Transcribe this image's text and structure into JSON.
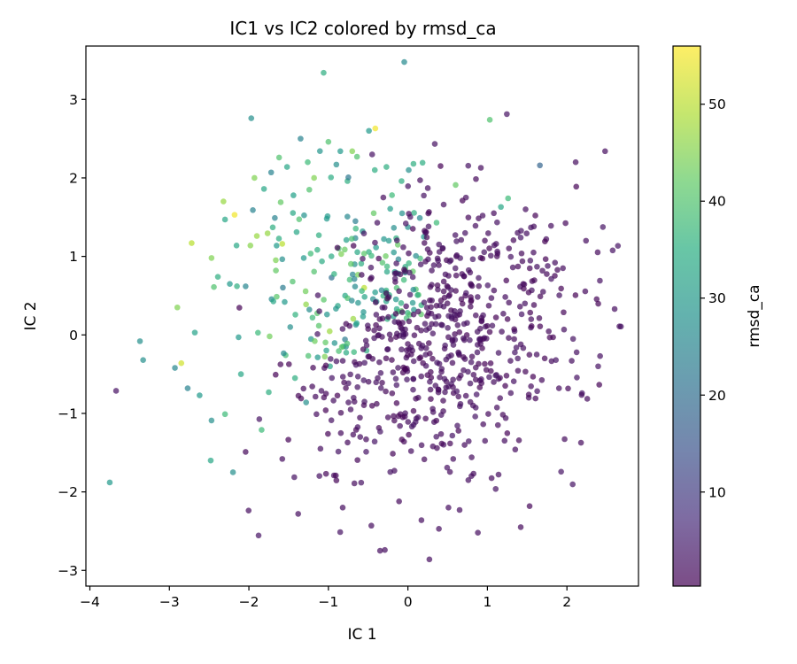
{
  "chart_data": {
    "type": "scatter",
    "title": "IC1 vs IC2 colored by rmsd_ca",
    "xlabel": "IC 1",
    "ylabel": "IC 2",
    "xlim": [
      -4.05,
      2.9
    ],
    "ylim": [
      -3.2,
      3.68
    ],
    "xticks": [
      -4,
      -3,
      -2,
      -1,
      0,
      1,
      2
    ],
    "yticks": [
      -3,
      -2,
      -1,
      0,
      1,
      2,
      3
    ],
    "xtick_labels": [
      "−4",
      "−3",
      "−2",
      "−1",
      "0",
      "1",
      "2"
    ],
    "ytick_labels": [
      "−3",
      "−2",
      "−1",
      "0",
      "1",
      "2",
      "3"
    ],
    "colormap": "viridis",
    "alpha": 0.7,
    "colorbar": {
      "label": "rmsd_ca",
      "min": 0.3,
      "max": 56,
      "ticks": [
        10,
        20,
        30,
        40,
        50
      ],
      "tick_labels": [
        "10",
        "20",
        "30",
        "40",
        "50"
      ]
    },
    "grid": false,
    "legend": "none",
    "n_points": 900,
    "points": [
      {
        "x": -3.75,
        "y": -1.88,
        "c": 30
      },
      {
        "x": -3.37,
        "y": -0.08,
        "c": 28
      },
      {
        "x": -3.33,
        "y": -0.32,
        "c": 28
      },
      {
        "x": -2.93,
        "y": -0.42,
        "c": 26
      },
      {
        "x": -2.9,
        "y": 0.35,
        "c": 45
      },
      {
        "x": -2.85,
        "y": -0.36,
        "c": 52
      },
      {
        "x": -2.77,
        "y": -0.68,
        "c": 25
      },
      {
        "x": -2.72,
        "y": 1.17,
        "c": 50
      },
      {
        "x": -2.68,
        "y": 0.03,
        "c": 32
      },
      {
        "x": -2.62,
        "y": -0.77,
        "c": 30
      },
      {
        "x": -2.48,
        "y": -1.6,
        "c": 33
      },
      {
        "x": -2.47,
        "y": -1.09,
        "c": 28
      },
      {
        "x": -2.47,
        "y": 0.98,
        "c": 45
      },
      {
        "x": -2.44,
        "y": 0.61,
        "c": 40
      },
      {
        "x": -2.39,
        "y": 0.74,
        "c": 35
      },
      {
        "x": -2.32,
        "y": 1.7,
        "c": 47
      },
      {
        "x": -2.3,
        "y": 1.47,
        "c": 33
      },
      {
        "x": -2.3,
        "y": -1.01,
        "c": 38
      },
      {
        "x": -2.24,
        "y": 0.65,
        "c": 30
      },
      {
        "x": -2.2,
        "y": -1.75,
        "c": 28
      },
      {
        "x": -2.18,
        "y": 1.53,
        "c": 55
      },
      {
        "x": -2.15,
        "y": 0.62,
        "c": 35
      },
      {
        "x": -2.13,
        "y": -0.03,
        "c": 30
      },
      {
        "x": -2.1,
        "y": -0.5,
        "c": 33
      },
      {
        "x": -1.97,
        "y": 2.76,
        "c": 28
      },
      {
        "x": -1.95,
        "y": 1.59,
        "c": 25
      },
      {
        "x": -1.93,
        "y": 2.0,
        "c": 45
      },
      {
        "x": -1.9,
        "y": 1.26,
        "c": 47
      },
      {
        "x": -1.84,
        "y": -1.21,
        "c": 38
      },
      {
        "x": -1.81,
        "y": 1.86,
        "c": 33
      },
      {
        "x": -1.75,
        "y": -0.73,
        "c": 35
      },
      {
        "x": -1.72,
        "y": 2.07,
        "c": 25
      },
      {
        "x": -1.7,
        "y": 1.37,
        "c": 35
      },
      {
        "x": -1.66,
        "y": 0.82,
        "c": 42
      },
      {
        "x": -1.62,
        "y": 2.26,
        "c": 40
      },
      {
        "x": -1.6,
        "y": 1.69,
        "c": 42
      },
      {
        "x": -1.58,
        "y": 1.16,
        "c": 50
      },
      {
        "x": -1.58,
        "y": -1.58,
        "c": 2
      },
      {
        "x": -1.55,
        "y": 0.42,
        "c": 30
      },
      {
        "x": -1.52,
        "y": 2.14,
        "c": 33
      },
      {
        "x": -1.48,
        "y": 0.1,
        "c": 28
      },
      {
        "x": -1.45,
        "y": 0.68,
        "c": 40
      },
      {
        "x": -1.42,
        "y": -0.55,
        "c": 35
      },
      {
        "x": -1.4,
        "y": 1.31,
        "c": 33
      },
      {
        "x": -1.38,
        "y": -2.28,
        "c": 2
      },
      {
        "x": -1.35,
        "y": 2.5,
        "c": 25
      },
      {
        "x": -1.31,
        "y": 0.98,
        "c": 30
      },
      {
        "x": -1.28,
        "y": -0.86,
        "c": 28
      },
      {
        "x": -1.26,
        "y": 2.2,
        "c": 38
      },
      {
        "x": -1.24,
        "y": 1.85,
        "c": 40
      },
      {
        "x": -1.2,
        "y": 0.22,
        "c": 38
      },
      {
        "x": -1.18,
        "y": 2.0,
        "c": 45
      },
      {
        "x": -1.15,
        "y": -1.01,
        "c": 2
      },
      {
        "x": -1.12,
        "y": 1.27,
        "c": 35
      },
      {
        "x": -1.1,
        "y": -1.45,
        "c": 2
      },
      {
        "x": -1.06,
        "y": 3.34,
        "c": 35
      },
      {
        "x": -1.02,
        "y": 1.48,
        "c": 30
      },
      {
        "x": -1.0,
        "y": 2.46,
        "c": 40
      },
      {
        "x": -0.98,
        "y": -0.4,
        "c": 33
      },
      {
        "x": -0.96,
        "y": 0.73,
        "c": 20
      },
      {
        "x": -0.93,
        "y": -1.79,
        "c": 2
      },
      {
        "x": -0.9,
        "y": 2.17,
        "c": 28
      },
      {
        "x": -0.87,
        "y": 1.1,
        "c": 40
      },
      {
        "x": -0.85,
        "y": 2.34,
        "c": 30
      },
      {
        "x": -0.82,
        "y": -2.2,
        "c": 2
      },
      {
        "x": -0.79,
        "y": 0.5,
        "c": 33
      },
      {
        "x": -0.76,
        "y": 1.96,
        "c": 35
      },
      {
        "x": -0.72,
        "y": -0.95,
        "c": 2
      },
      {
        "x": -0.7,
        "y": 2.34,
        "c": 45
      },
      {
        "x": -0.67,
        "y": 0.9,
        "c": 28
      },
      {
        "x": -0.64,
        "y": 2.27,
        "c": 40
      },
      {
        "x": -0.6,
        "y": -1.3,
        "c": 2
      },
      {
        "x": -0.57,
        "y": 1.32,
        "c": 30
      },
      {
        "x": -0.55,
        "y": 0.6,
        "c": 50
      },
      {
        "x": -0.52,
        "y": -0.2,
        "c": 35
      },
      {
        "x": -0.49,
        "y": 2.6,
        "c": 30
      },
      {
        "x": -0.46,
        "y": -2.43,
        "c": 2
      },
      {
        "x": -0.43,
        "y": 1.55,
        "c": 42
      },
      {
        "x": -0.41,
        "y": 2.63,
        "c": 55
      },
      {
        "x": -0.38,
        "y": -0.55,
        "c": 2
      },
      {
        "x": -0.35,
        "y": -2.75,
        "c": 2
      },
      {
        "x": -0.32,
        "y": 0.92,
        "c": 40
      },
      {
        "x": -0.29,
        "y": -2.74,
        "c": 2
      },
      {
        "x": -0.27,
        "y": 2.14,
        "c": 35
      },
      {
        "x": -0.24,
        "y": 1.2,
        "c": 30
      },
      {
        "x": -0.2,
        "y": 1.78,
        "c": 38
      },
      {
        "x": -0.17,
        "y": -1.73,
        "c": 2
      },
      {
        "x": -0.14,
        "y": 0.33,
        "c": 33
      },
      {
        "x": -0.1,
        "y": -1.16,
        "c": 2
      },
      {
        "x": -0.08,
        "y": 1.96,
        "c": 35
      },
      {
        "x": -0.05,
        "y": 0.7,
        "c": 38
      },
      {
        "x": -0.02,
        "y": -0.29,
        "c": 2
      },
      {
        "x": 0.01,
        "y": 2.1,
        "c": 28
      },
      {
        "x": 0.04,
        "y": -1.48,
        "c": 2
      },
      {
        "x": 0.07,
        "y": 2.18,
        "c": 35
      },
      {
        "x": 0.1,
        "y": 0.58,
        "c": 40
      },
      {
        "x": 0.13,
        "y": -0.8,
        "c": 2
      },
      {
        "x": 0.17,
        "y": -2.36,
        "c": 2
      },
      {
        "x": 0.2,
        "y": 1.25,
        "c": 30
      },
      {
        "x": 0.23,
        "y": -0.17,
        "c": 2
      },
      {
        "x": 0.25,
        "y": 1.87,
        "c": 2
      },
      {
        "x": 0.27,
        "y": -2.86,
        "c": 2
      },
      {
        "x": 0.3,
        "y": 0.82,
        "c": 2
      },
      {
        "x": 0.33,
        "y": -1.11,
        "c": 2
      },
      {
        "x": 0.36,
        "y": 1.43,
        "c": 38
      },
      {
        "x": 0.39,
        "y": -2.47,
        "c": 2
      },
      {
        "x": 0.42,
        "y": 0.13,
        "c": 2
      },
      {
        "x": 0.45,
        "y": 1.66,
        "c": 2
      },
      {
        "x": 0.48,
        "y": -0.67,
        "c": 2
      },
      {
        "x": 0.51,
        "y": -2.2,
        "c": 2
      },
      {
        "x": 0.54,
        "y": 0.95,
        "c": 2
      },
      {
        "x": 0.57,
        "y": -1.58,
        "c": 2
      },
      {
        "x": 0.6,
        "y": 1.91,
        "c": 42
      },
      {
        "x": 0.62,
        "y": 0.25,
        "c": 2
      },
      {
        "x": 0.65,
        "y": -2.23,
        "c": 2
      },
      {
        "x": 0.67,
        "y": 1.21,
        "c": 2
      },
      {
        "x": 0.7,
        "y": -0.45,
        "c": 2
      },
      {
        "x": 0.73,
        "y": 1.75,
        "c": 2
      },
      {
        "x": 0.76,
        "y": -1.85,
        "c": 2
      },
      {
        "x": 0.79,
        "y": 0.65,
        "c": 2
      },
      {
        "x": 0.82,
        "y": -0.9,
        "c": 2
      },
      {
        "x": 0.85,
        "y": 1.39,
        "c": 2
      },
      {
        "x": 0.88,
        "y": -2.52,
        "c": 2
      },
      {
        "x": 0.91,
        "y": 0.08,
        "c": 2
      },
      {
        "x": 0.94,
        "y": 1.52,
        "c": 2
      },
      {
        "x": 0.97,
        "y": -1.35,
        "c": 2
      },
      {
        "x": 1.03,
        "y": 2.74,
        "c": 40
      },
      {
        "x": 1.05,
        "y": 0.47,
        "c": 2
      },
      {
        "x": 1.08,
        "y": -0.6,
        "c": 2
      },
      {
        "x": 1.11,
        "y": 1.16,
        "c": 2
      },
      {
        "x": 1.14,
        "y": -1.78,
        "c": 2
      },
      {
        "x": 1.17,
        "y": 1.63,
        "c": 33
      },
      {
        "x": 1.2,
        "y": 0.27,
        "c": 2
      },
      {
        "x": 1.23,
        "y": -1.06,
        "c": 2
      },
      {
        "x": 1.26,
        "y": 1.74,
        "c": 38
      },
      {
        "x": 1.29,
        "y": -0.33,
        "c": 2
      },
      {
        "x": 1.32,
        "y": 0.86,
        "c": 2
      },
      {
        "x": 1.35,
        "y": -1.46,
        "c": 2
      },
      {
        "x": 1.38,
        "y": 1.3,
        "c": 2
      },
      {
        "x": 1.42,
        "y": -0.12,
        "c": 2
      },
      {
        "x": 1.45,
        "y": 0.65,
        "c": 2
      },
      {
        "x": 1.48,
        "y": 1.6,
        "c": 2
      },
      {
        "x": 1.52,
        "y": -0.8,
        "c": 2
      },
      {
        "x": 1.55,
        "y": 0.2,
        "c": 2
      },
      {
        "x": 1.58,
        "y": 1.05,
        "c": 2
      },
      {
        "x": 1.62,
        "y": -0.25,
        "c": 2
      },
      {
        "x": 1.66,
        "y": 2.16,
        "c": 18
      },
      {
        "x": 1.7,
        "y": 0.55,
        "c": 2
      },
      {
        "x": 1.74,
        "y": 1.22,
        "c": 2
      },
      {
        "x": 1.8,
        "y": 1.39,
        "c": 2
      },
      {
        "x": 1.85,
        "y": 0.92,
        "c": 2
      },
      {
        "x": 1.9,
        "y": -0.68,
        "c": 2
      },
      {
        "x": 1.95,
        "y": 0.85,
        "c": 2
      },
      {
        "x": 2.06,
        "y": -0.33,
        "c": 2
      },
      {
        "x": 2.11,
        "y": 2.2,
        "c": 2
      },
      {
        "x": 2.24,
        "y": 1.2,
        "c": 2
      },
      {
        "x": 2.48,
        "y": 2.34,
        "c": 2
      },
      {
        "x": 2.6,
        "y": 0.33,
        "c": 2
      }
    ]
  }
}
